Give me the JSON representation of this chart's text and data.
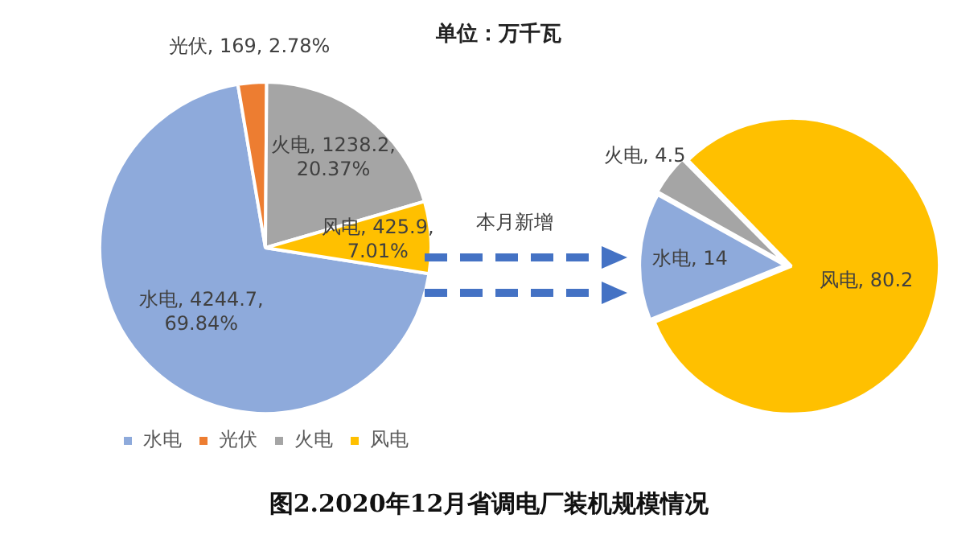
{
  "chart_data": [
    {
      "type": "pie",
      "title": "图2.2020年12月省调电厂装机规模情况",
      "subtitle": "单位：万千瓦",
      "categories": [
        "水电",
        "光伏",
        "火电",
        "风电"
      ],
      "values": [
        4244.7,
        169,
        1238.2,
        425.9
      ],
      "colors": [
        "#8eaadb",
        "#ed7d31",
        "#a5a5a5",
        "#ffc000"
      ],
      "value_labels": [
        "水电, 4244.7, 69.84%",
        "光伏, 169, 2.78%",
        "火电, 1238.2, 20.37%",
        "风电, 425.9, 7.01%"
      ],
      "legend": "bottom"
    },
    {
      "type": "pie",
      "annotations": [
        "本月新增"
      ],
      "categories": [
        null,
        null,
        null
      ],
      "values": [
        14,
        4.5,
        80.2
      ],
      "colors": [
        "#8eaadb",
        "#a5a5a5",
        "#ffc000"
      ],
      "value_labels": [
        "水电, 14",
        "火电, 4.5",
        "风电, 80.2"
      ],
      "legend": false
    }
  ]
}
